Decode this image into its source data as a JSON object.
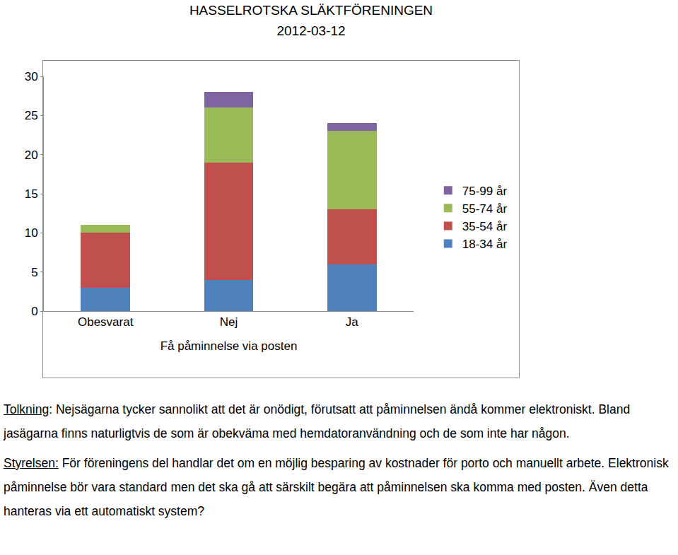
{
  "chart_data": {
    "type": "bar",
    "stacked": true,
    "title": "HASSELROTSKA SLÄKTFÖRENINGEN",
    "subtitle": "2012-03-12",
    "x_label": "Få påminnelse via posten",
    "categories": [
      "Obesvarat",
      "Nej",
      "Ja"
    ],
    "series": [
      {
        "name": "18-34 år",
        "color": "#4f81bd",
        "values": [
          3,
          4,
          6
        ]
      },
      {
        "name": "35-54 år",
        "color": "#c0504d",
        "values": [
          7,
          15,
          7
        ]
      },
      {
        "name": "55-74 år",
        "color": "#9bbb59",
        "values": [
          1,
          7,
          10
        ]
      },
      {
        "name": "75-99 år",
        "color": "#8064a2",
        "values": [
          0,
          2,
          1
        ]
      }
    ],
    "ylim": [
      0,
      30
    ],
    "yticks": [
      0,
      5,
      10,
      15,
      20,
      25,
      30
    ],
    "grid": false,
    "legend": "right"
  },
  "notes": [
    {
      "label": "Tolkning",
      "text": ": Nejsägarna tycker sannolikt att det är onödigt, förutsatt att påminnelsen ändå kommer elektroniskt. Bland jasägarna finns naturligtvis de som är obekväma med hemdatoranvändning och de som inte har någon."
    },
    {
      "label": "Styrelsen:",
      "text": " För föreningens del handlar det om en möjlig besparing av kostnader för porto och manuellt arbete. Elektronisk påminnelse bör vara standard men det ska gå att särskilt begära att påminnelsen ska komma med posten. Även detta hanteras via ett automatiskt system?"
    }
  ]
}
